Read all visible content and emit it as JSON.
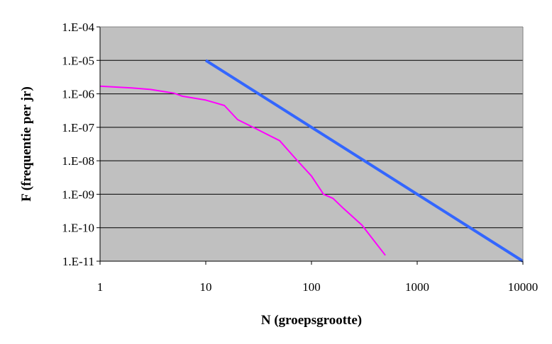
{
  "chart_data": {
    "type": "line",
    "title": "",
    "xlabel": "N (groepsgrootte)",
    "ylabel": "F (frequentie per jr)",
    "x_scale": "log",
    "y_scale": "log",
    "xlim": [
      1,
      10000
    ],
    "ylim": [
      1e-11,
      0.0001
    ],
    "grid": "horizontal",
    "legend": "none",
    "plot_background": "#c0c0c0",
    "x_ticks": [
      {
        "value": 1,
        "label": "1"
      },
      {
        "value": 10,
        "label": "10"
      },
      {
        "value": 100,
        "label": "100"
      },
      {
        "value": 1000,
        "label": "1000"
      },
      {
        "value": 10000,
        "label": "10000"
      }
    ],
    "y_ticks": [
      {
        "value": 0.0001,
        "label": "1.E-04"
      },
      {
        "value": 1e-05,
        "label": "1.E-05"
      },
      {
        "value": 1e-06,
        "label": "1.E-06"
      },
      {
        "value": 1e-07,
        "label": "1.E-07"
      },
      {
        "value": 1e-08,
        "label": "1.E-08"
      },
      {
        "value": 1e-09,
        "label": "1.E-09"
      },
      {
        "value": 1e-10,
        "label": "1.E-10"
      },
      {
        "value": 1e-11,
        "label": "1.E-11"
      }
    ],
    "series": [
      {
        "color": "#3366ff",
        "x": [
          10,
          10000
        ],
        "y": [
          1e-05,
          1e-11
        ]
      },
      {
        "color": "#ff00ff",
        "x": [
          1,
          2,
          3,
          5,
          6,
          10,
          12,
          15,
          20,
          30,
          50,
          70,
          100,
          130,
          160,
          200,
          300,
          500
        ],
        "y": [
          1.7e-06,
          1.5e-06,
          1.35e-06,
          1.05e-06,
          8.5e-07,
          6.5e-07,
          5.5e-07,
          4.5e-07,
          1.7e-07,
          9e-08,
          4e-08,
          1.2e-08,
          3.5e-09,
          1e-09,
          7.5e-10,
          3.8e-10,
          1.2e-10,
          1.5e-11
        ]
      }
    ]
  }
}
